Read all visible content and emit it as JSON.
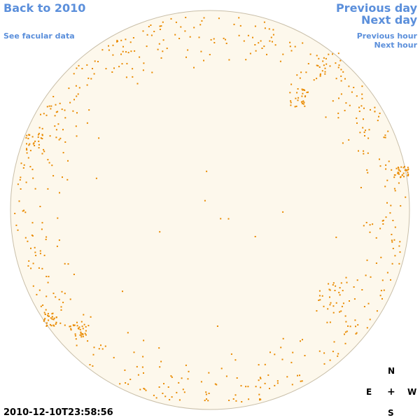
{
  "nav": {
    "back_label": "Back to 2010",
    "facular_label": "See facular data",
    "prev_day_label": "Previous day",
    "next_day_label": "Next day",
    "prev_hour_label": "Previous hour",
    "next_hour_label": "Next hour"
  },
  "compass": {
    "north": "N",
    "south": "S",
    "east": "E",
    "west": "W",
    "center": "+"
  },
  "timestamp": "2010-12-10T23:58:56",
  "colors": {
    "disk_fill": "#fdf8ec",
    "disk_edge": "#c9bfa9",
    "feature": "#e98a00",
    "link": "#5b8fdb"
  }
}
